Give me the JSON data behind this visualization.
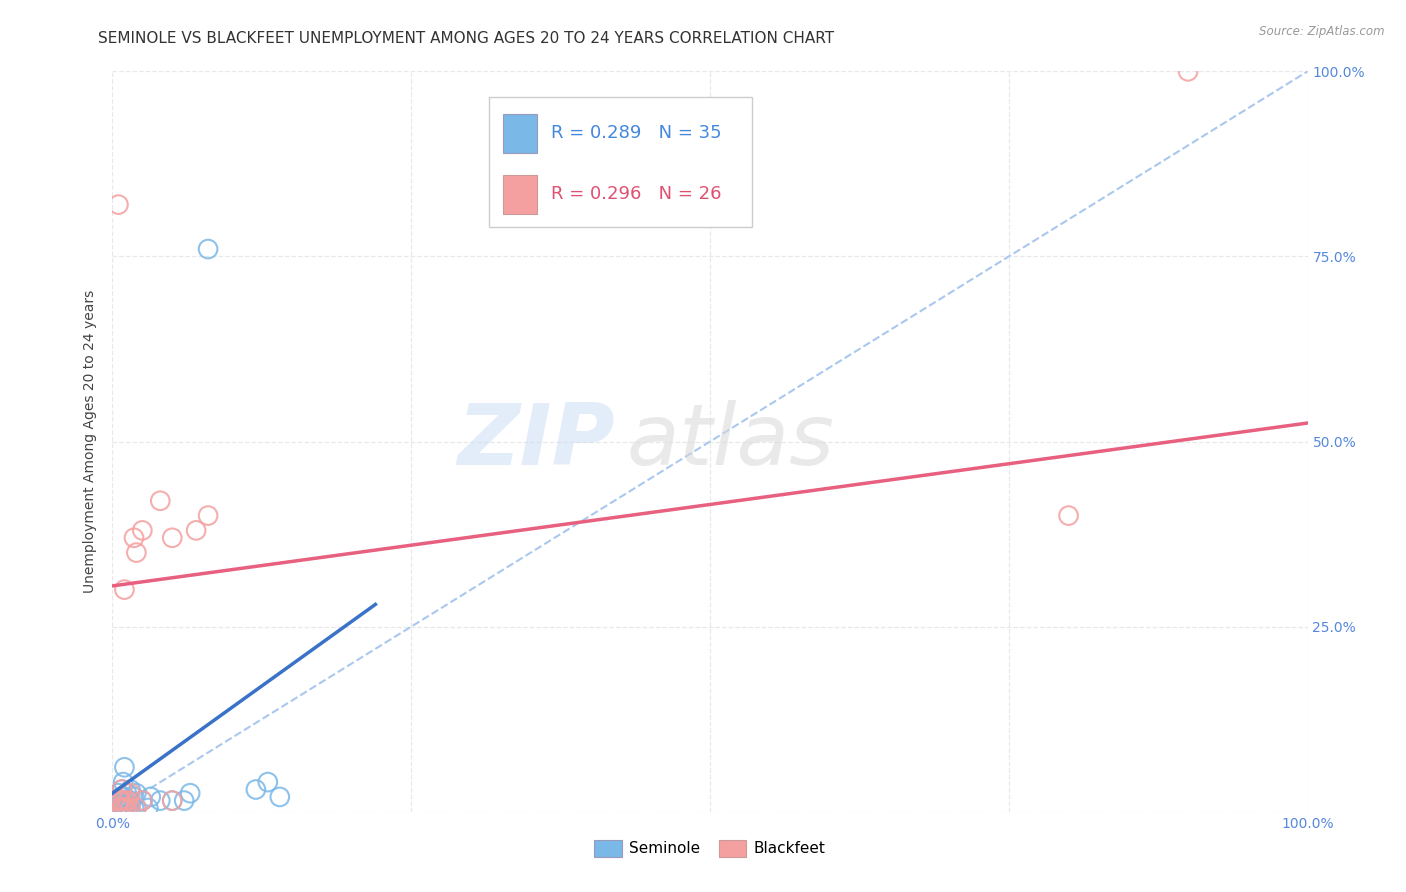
{
  "title": "SEMINOLE VS BLACKFEET UNEMPLOYMENT AMONG AGES 20 TO 24 YEARS CORRELATION CHART",
  "source": "Source: ZipAtlas.com",
  "ylabel": "Unemployment Among Ages 20 to 24 years",
  "xlim": [
    0,
    1
  ],
  "ylim": [
    0,
    1
  ],
  "legend_r1": "R = 0.289",
  "legend_n1": "N = 35",
  "legend_r2": "R = 0.296",
  "legend_n2": "N = 26",
  "seminole_color": "#7ab8e8",
  "blackfeet_color": "#f4a0a0",
  "watermark_zip": "ZIP",
  "watermark_atlas": "atlas",
  "seminole_x": [
    0.005,
    0.005,
    0.005,
    0.007,
    0.007,
    0.008,
    0.008,
    0.009,
    0.009,
    0.009,
    0.01,
    0.01,
    0.01,
    0.012,
    0.012,
    0.013,
    0.013,
    0.015,
    0.015,
    0.015,
    0.018,
    0.018,
    0.02,
    0.02,
    0.025,
    0.03,
    0.032,
    0.04,
    0.05,
    0.06,
    0.065,
    0.08,
    0.12,
    0.13,
    0.14
  ],
  "seminole_y": [
    0.005,
    0.015,
    0.025,
    0.01,
    0.02,
    0.01,
    0.03,
    0.005,
    0.015,
    0.04,
    0.005,
    0.02,
    0.06,
    0.01,
    0.025,
    0.005,
    0.015,
    0.005,
    0.015,
    0.03,
    0.005,
    0.02,
    0.005,
    0.025,
    0.015,
    0.005,
    0.02,
    0.015,
    0.015,
    0.015,
    0.025,
    0.76,
    0.03,
    0.04,
    0.02
  ],
  "blackfeet_x": [
    0.005,
    0.005,
    0.007,
    0.007,
    0.008,
    0.01,
    0.01,
    0.012,
    0.013,
    0.015,
    0.015,
    0.018,
    0.02,
    0.02,
    0.025,
    0.025,
    0.04,
    0.05,
    0.05,
    0.07,
    0.08,
    0.8,
    0.9,
    0.005,
    0.008,
    0.01
  ],
  "blackfeet_y": [
    0.005,
    0.82,
    0.015,
    0.015,
    0.03,
    0.005,
    0.3,
    0.005,
    0.015,
    0.005,
    0.025,
    0.37,
    0.005,
    0.35,
    0.015,
    0.38,
    0.42,
    0.015,
    0.37,
    0.38,
    0.4,
    0.4,
    1.0,
    0.015,
    0.005,
    0.015
  ],
  "seminole_trend_x": [
    0.0,
    0.22
  ],
  "seminole_trend_y": [
    0.025,
    0.28
  ],
  "blackfeet_trend_x": [
    0.0,
    1.0
  ],
  "blackfeet_trend_y": [
    0.305,
    0.525
  ],
  "ref_line_x": [
    0.0,
    1.0
  ],
  "ref_line_y": [
    0.0,
    1.0
  ],
  "grid_color": "#e8e8e8",
  "ref_line_color": "#aac8ee",
  "background_color": "#ffffff",
  "title_fontsize": 11,
  "axis_label_fontsize": 10,
  "tick_fontsize": 10,
  "legend_fontsize": 13
}
